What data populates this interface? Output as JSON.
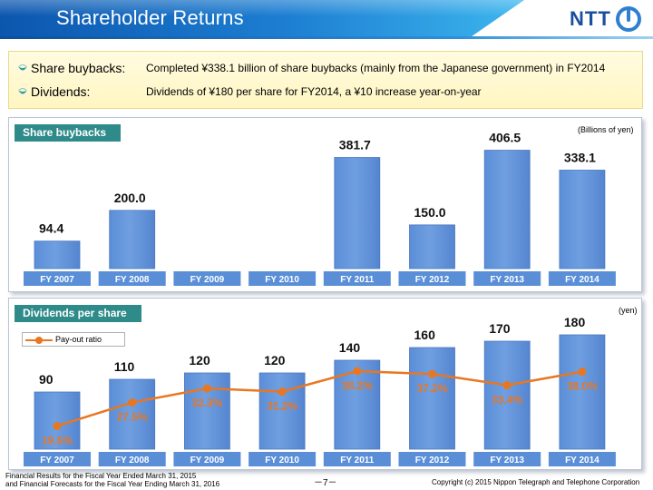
{
  "header": {
    "title": "Shareholder Returns",
    "logo_text": "NTT",
    "logo_icon": "ntt-circle-logo-icon"
  },
  "summary": {
    "buybacks_label": "Share buybacks:",
    "buybacks_text": "Completed ¥338.1 billion of share buybacks (mainly from the Japanese government) in FY2014",
    "dividends_label": "Dividends:",
    "dividends_text": "Dividends of ¥180 per share for FY2014, a ¥10 increase year-on-year",
    "bullet_icon": "teal-bullet-icon"
  },
  "colors": {
    "bar_fill": "#6f9fe0",
    "tick_fill": "#5a8fd8",
    "panel_tag": "#2f8a8a",
    "payout_line": "#e87722"
  },
  "chart_data": [
    {
      "type": "bar",
      "title": "Share buybacks",
      "unit": "(Billions of yen)",
      "categories": [
        "FY 2007",
        "FY 2008",
        "FY 2009",
        "FY 2010",
        "FY 2011",
        "FY 2012",
        "FY 2013",
        "FY 2014"
      ],
      "values": [
        94.4,
        200.0,
        null,
        null,
        381.7,
        150.0,
        406.5,
        338.1
      ],
      "labels": [
        "94.4",
        "200.0",
        "",
        "",
        "381.7",
        "150.0",
        "406.5",
        "338.1"
      ],
      "ylim": [
        0,
        430
      ]
    },
    {
      "type": "bar",
      "title": "Dividends per share",
      "unit": "(yen)",
      "categories": [
        "FY 2007",
        "FY 2008",
        "FY 2009",
        "FY 2010",
        "FY 2011",
        "FY 2012",
        "FY 2013",
        "FY 2014"
      ],
      "values": [
        90,
        110,
        120,
        120,
        140,
        160,
        170,
        180
      ],
      "labels": [
        "90",
        "110",
        "120",
        "120",
        "140",
        "160",
        "170",
        "180"
      ],
      "ylim": [
        0,
        190
      ],
      "line_series": {
        "name": "Pay-out ratio",
        "values": [
          19.5,
          27.5,
          32.3,
          31.2,
          38.2,
          37.2,
          33.4,
          38.0
        ],
        "labels": [
          "19.5%",
          "27.5%",
          "32.3%",
          "31.2%",
          "38.2%",
          "37.2%",
          "33.4%",
          "38.0%"
        ],
        "ylim": [
          15,
          45
        ]
      }
    }
  ],
  "footer": {
    "left_line1": "Financial Results for the Fiscal Year Ended March 31, 2015",
    "left_line2": "and Financial Forecasts for the Fiscal Year Ending March 31, 2016",
    "page": "－7－",
    "copyright": "Copyright (c) 2015 Nippon Telegraph and Telephone Corporation"
  }
}
